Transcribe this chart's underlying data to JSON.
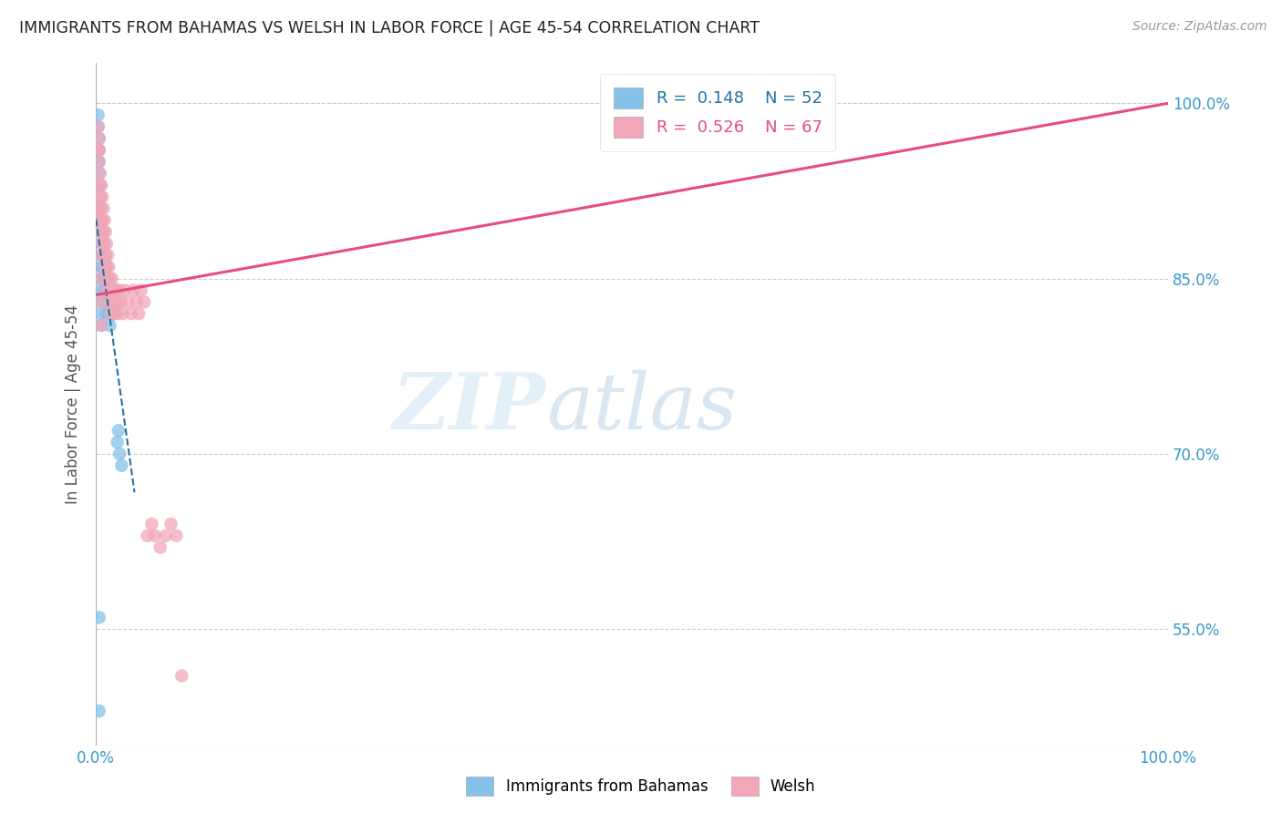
{
  "title": "IMMIGRANTS FROM BAHAMAS VS WELSH IN LABOR FORCE | AGE 45-54 CORRELATION CHART",
  "source": "Source: ZipAtlas.com",
  "ylabel": "In Labor Force | Age 45-54",
  "xlim": [
    0.0,
    1.0
  ],
  "ylim": [
    0.45,
    1.035
  ],
  "ytick_positions": [
    0.55,
    0.7,
    0.85,
    1.0
  ],
  "ytick_labels": [
    "55.0%",
    "70.0%",
    "85.0%",
    "100.0%"
  ],
  "blue_scatter_x": [
    0.002,
    0.002,
    0.003,
    0.003,
    0.003,
    0.003,
    0.004,
    0.004,
    0.004,
    0.004,
    0.005,
    0.005,
    0.005,
    0.005,
    0.005,
    0.005,
    0.005,
    0.005,
    0.005,
    0.006,
    0.006,
    0.006,
    0.007,
    0.007,
    0.007,
    0.008,
    0.008,
    0.008,
    0.009,
    0.009,
    0.01,
    0.01,
    0.01,
    0.011,
    0.011,
    0.012,
    0.012,
    0.013,
    0.013,
    0.014,
    0.015,
    0.015,
    0.016,
    0.017,
    0.018,
    0.019,
    0.02,
    0.021,
    0.022,
    0.024,
    0.003,
    0.003
  ],
  "blue_scatter_y": [
    0.99,
    0.98,
    0.97,
    0.96,
    0.95,
    0.94,
    0.93,
    0.92,
    0.91,
    0.9,
    0.89,
    0.88,
    0.87,
    0.86,
    0.85,
    0.84,
    0.83,
    0.82,
    0.81,
    0.9,
    0.88,
    0.86,
    0.89,
    0.87,
    0.85,
    0.88,
    0.86,
    0.84,
    0.87,
    0.85,
    0.86,
    0.84,
    0.82,
    0.85,
    0.83,
    0.84,
    0.82,
    0.83,
    0.81,
    0.82,
    0.84,
    0.82,
    0.83,
    0.82,
    0.83,
    0.84,
    0.71,
    0.72,
    0.7,
    0.69,
    0.56,
    0.48
  ],
  "pink_scatter_x": [
    0.002,
    0.002,
    0.003,
    0.003,
    0.003,
    0.003,
    0.003,
    0.004,
    0.004,
    0.004,
    0.005,
    0.005,
    0.005,
    0.005,
    0.005,
    0.005,
    0.005,
    0.006,
    0.006,
    0.006,
    0.007,
    0.007,
    0.007,
    0.008,
    0.008,
    0.008,
    0.009,
    0.009,
    0.01,
    0.01,
    0.01,
    0.011,
    0.011,
    0.012,
    0.012,
    0.013,
    0.013,
    0.014,
    0.014,
    0.015,
    0.015,
    0.016,
    0.017,
    0.017,
    0.018,
    0.019,
    0.02,
    0.021,
    0.022,
    0.023,
    0.025,
    0.027,
    0.03,
    0.033,
    0.035,
    0.038,
    0.04,
    0.042,
    0.045,
    0.048,
    0.052,
    0.055,
    0.06,
    0.065,
    0.07,
    0.075,
    0.08
  ],
  "pink_scatter_y": [
    0.98,
    0.96,
    0.97,
    0.96,
    0.95,
    0.93,
    0.91,
    0.94,
    0.92,
    0.9,
    0.93,
    0.91,
    0.89,
    0.87,
    0.85,
    0.83,
    0.81,
    0.92,
    0.9,
    0.88,
    0.91,
    0.89,
    0.87,
    0.9,
    0.88,
    0.86,
    0.89,
    0.87,
    0.88,
    0.86,
    0.84,
    0.87,
    0.85,
    0.86,
    0.84,
    0.85,
    0.83,
    0.84,
    0.82,
    0.85,
    0.83,
    0.84,
    0.83,
    0.82,
    0.83,
    0.84,
    0.82,
    0.83,
    0.84,
    0.83,
    0.82,
    0.84,
    0.83,
    0.82,
    0.84,
    0.83,
    0.82,
    0.84,
    0.83,
    0.63,
    0.64,
    0.63,
    0.62,
    0.63,
    0.64,
    0.63,
    0.51
  ],
  "blue_color": "#85c1e9",
  "pink_color": "#f1a7b8",
  "blue_line_color": "#2471a3",
  "pink_line_color": "#e74c7c",
  "grid_color": "#cccccc",
  "background_color": "#ffffff",
  "tick_color": "#3399cc",
  "legend_blue_color": "#2471a3",
  "legend_pink_color": "#e74c7c"
}
